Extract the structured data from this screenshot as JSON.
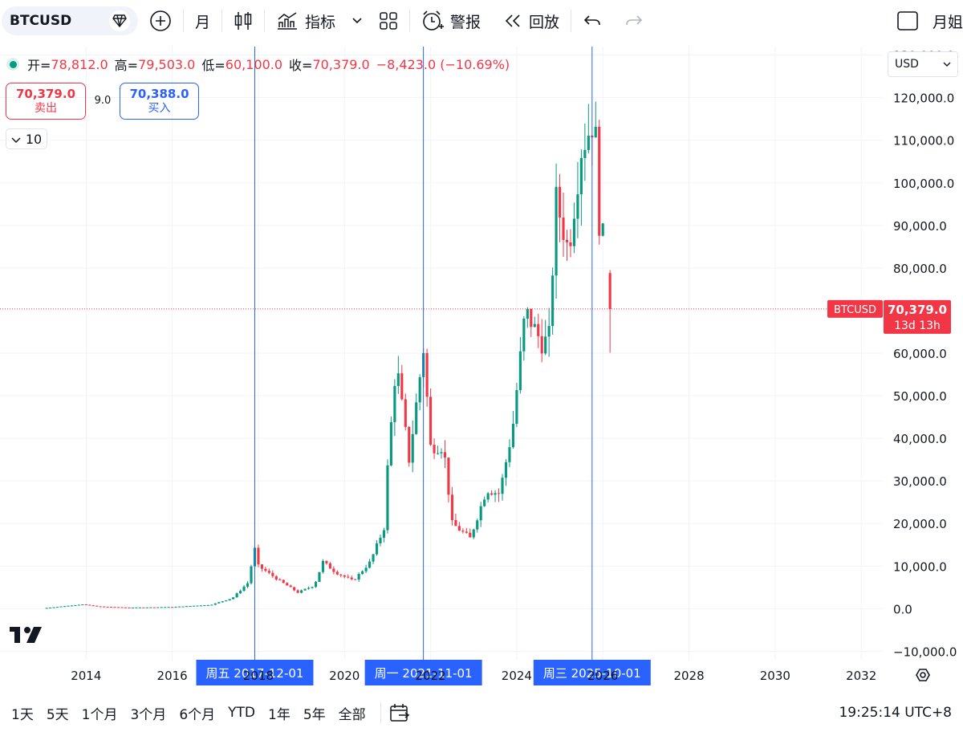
{
  "toolbar": {
    "symbol": "BTCUSD",
    "interval": "月",
    "indicators_label": "指标",
    "alert_label": "警报",
    "replay_label": "回放",
    "right_label": "月姐"
  },
  "legend": {
    "open_label": "开=",
    "open": "78,812.0",
    "high_label": "高=",
    "high": "79,503.0",
    "low_label": "低=",
    "low": "60,100.0",
    "close_label": "收=",
    "close": "70,379.0",
    "change": "−8,423.0 (−10.69%)"
  },
  "trade": {
    "sell_price": "70,379.0",
    "sell_label": "卖出",
    "spread": "9.0",
    "buy_price": "70,388.0",
    "buy_label": "买入"
  },
  "volume_toggle": "10",
  "currency": "USD",
  "colors": {
    "up": "#089981",
    "down": "#f23645",
    "accent": "#2962ff"
  },
  "chart_data": {
    "type": "candlestick",
    "ylim": [
      -12000,
      132000
    ],
    "yticks": [
      -10000,
      0,
      10000,
      20000,
      30000,
      40000,
      50000,
      60000,
      70000,
      80000,
      90000,
      100000,
      110000,
      120000,
      130000
    ],
    "ytick_labels": [
      "−10,000.0",
      "0.0",
      "10,000.0",
      "20,000.0",
      "30,000.0",
      "40,000.0",
      "50,000.0",
      "60,000.0",
      "70,000.0",
      "80,000.0",
      "90,000.0",
      "100,000.0",
      "110,000.0",
      "120,000.0",
      "130,000.0"
    ],
    "xlim": [
      2012.0,
      2032.5
    ],
    "xticks": [
      2014,
      2016,
      2018,
      2020,
      2022,
      2024,
      2026,
      2028,
      2030,
      2032
    ],
    "xtick_labels": [
      "2014",
      "2016",
      "2018",
      "2020",
      "2022",
      "2024",
      "2026",
      "2028",
      "2030",
      "2032"
    ],
    "markers": [
      {
        "x": 2017.917,
        "label": "周五 2017-12-01"
      },
      {
        "x": 2021.833,
        "label": "周一 2021-11-01"
      },
      {
        "x": 2025.75,
        "label": "周三 2025-10-01"
      }
    ],
    "last_price": {
      "symbol": "BTCUSD",
      "value": 70379,
      "label": "70,379.0",
      "countdown": "13d 13h"
    },
    "pivots": [
      [
        2013.0,
        100
      ],
      [
        2013.9,
        1000
      ],
      [
        2014.3,
        500
      ],
      [
        2015.0,
        250
      ],
      [
        2016.0,
        400
      ],
      [
        2016.9,
        900
      ],
      [
        2017.4,
        2500
      ],
      [
        2017.75,
        6000
      ],
      [
        2017.917,
        14000
      ],
      [
        2018.0,
        10000
      ],
      [
        2018.5,
        6500
      ],
      [
        2018.917,
        3800
      ],
      [
        2019.3,
        5500
      ],
      [
        2019.5,
        11000
      ],
      [
        2019.8,
        8500
      ],
      [
        2020.2,
        6500
      ],
      [
        2020.6,
        11000
      ],
      [
        2020.917,
        19000
      ],
      [
        2021.0,
        33000
      ],
      [
        2021.2,
        58000
      ],
      [
        2021.5,
        35000
      ],
      [
        2021.833,
        61000
      ],
      [
        2022.0,
        38000
      ],
      [
        2022.3,
        38000
      ],
      [
        2022.5,
        20000
      ],
      [
        2022.917,
        16500
      ],
      [
        2023.3,
        28000
      ],
      [
        2023.6,
        27000
      ],
      [
        2023.9,
        42000
      ],
      [
        2024.2,
        70000
      ],
      [
        2024.6,
        62000
      ],
      [
        2024.75,
        64000
      ],
      [
        2024.917,
        96000
      ],
      [
        2025.2,
        84000
      ],
      [
        2025.5,
        108000
      ],
      [
        2025.75,
        114000
      ],
      [
        2025.833,
        110000
      ],
      [
        2025.917,
        91000
      ],
      [
        2026.0,
        87000
      ],
      [
        2026.083,
        78812
      ]
    ],
    "last_candle": {
      "open": 78812,
      "high": 79503,
      "low": 60100,
      "close": 70379
    }
  },
  "bottombar": {
    "ranges": [
      "1天",
      "5天",
      "1个月",
      "3个月",
      "6个月",
      "YTD",
      "1年",
      "5年",
      "全部"
    ],
    "clock": "19:25:14 UTC+8"
  }
}
